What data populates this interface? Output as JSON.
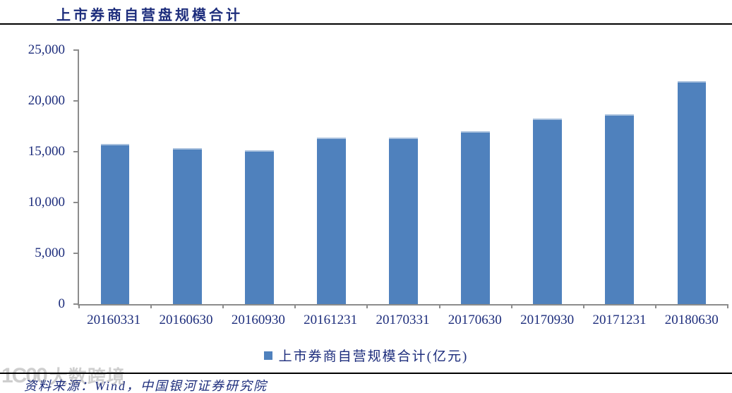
{
  "header": {
    "title": "上市券商自营盘规模合计"
  },
  "chart_data": {
    "type": "bar",
    "title": "上市券商自营盘规模合计",
    "categories": [
      "20160331",
      "20160630",
      "20160930",
      "20161231",
      "20170331",
      "20170630",
      "20170930",
      "20171231",
      "20180630"
    ],
    "values": [
      15750,
      15340,
      15160,
      16380,
      16420,
      17040,
      18270,
      18650,
      21950
    ],
    "ylim": [
      0,
      25000
    ],
    "yticks": [
      0,
      5000,
      10000,
      15000,
      20000,
      25000
    ],
    "ytick_labels": [
      "0",
      "5,000",
      "10,000",
      "15,000",
      "20,000",
      "25,000"
    ],
    "xlabel": "",
    "ylabel": "",
    "legend": "上市券商自营规模合计(亿元)",
    "legend_position": "bottom",
    "grid": false,
    "bar_color": "#4f81bd"
  },
  "footer": {
    "source": "资料来源：Wind，中国银河证券研究院",
    "watermark_logo": "1C00",
    "watermark_text": "大数跨境"
  },
  "colors": {
    "accent_bar": "#4f81bd",
    "bar_top_edge": "#a9c1de",
    "text_navy": "#1d2d7c",
    "axis_gray": "#8c8c8c",
    "rule_black": "#000000",
    "watermark_gray": "#c9c9c9"
  }
}
